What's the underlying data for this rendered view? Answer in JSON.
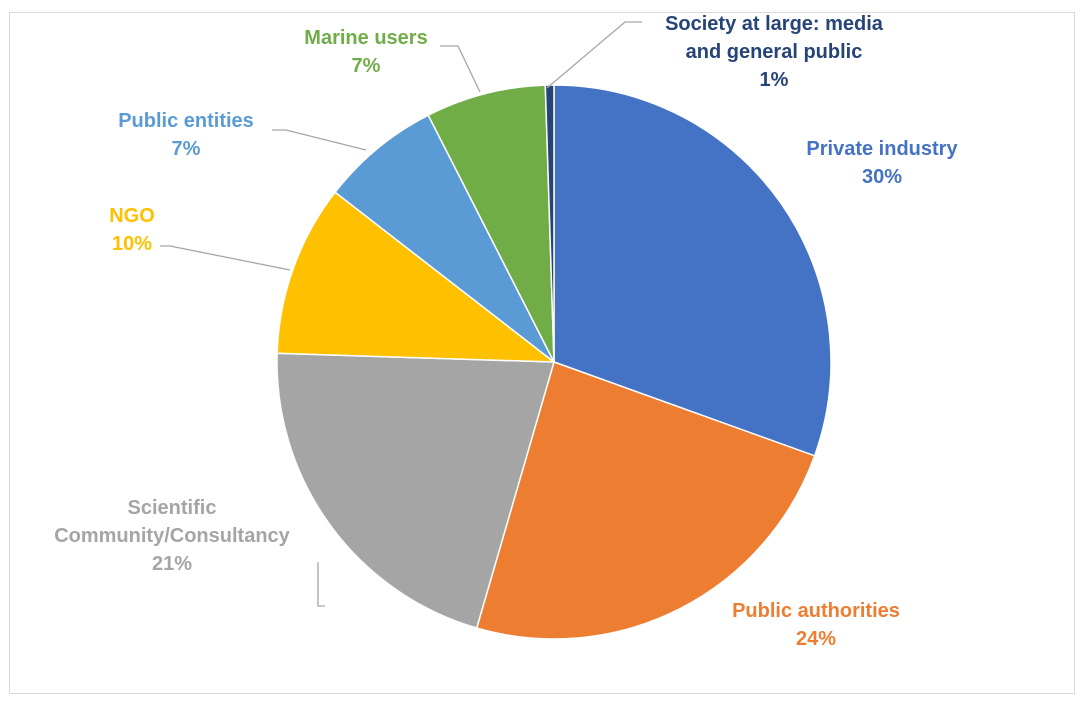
{
  "chart_data": {
    "type": "pie",
    "title": "",
    "slices": [
      {
        "label_lines": [
          "Private industry"
        ],
        "value_label": "30%",
        "value": 30.5,
        "color": "#4472C4"
      },
      {
        "label_lines": [
          "Public authorities"
        ],
        "value_label": "24%",
        "value": 24.0,
        "color": "#ED7D31"
      },
      {
        "label_lines": [
          "Scientific",
          "Community/Consultancy"
        ],
        "value_label": "21%",
        "value": 21.0,
        "color": "#A5A5A5"
      },
      {
        "label_lines": [
          "NGO"
        ],
        "value_label": "10%",
        "value": 10.0,
        "color": "#FFC000"
      },
      {
        "label_lines": [
          "Public entities"
        ],
        "value_label": "7%",
        "value": 7.0,
        "color": "#5B9BD5"
      },
      {
        "label_lines": [
          "Marine users"
        ],
        "value_label": "7%",
        "value": 7.0,
        "color": "#70AD47"
      },
      {
        "label_lines": [
          "Society at large: media",
          "and general public"
        ],
        "value_label": "1%",
        "value": 0.5,
        "color": "#264478"
      }
    ],
    "legend": "none",
    "start_angle_deg": 0,
    "direction": "clockwise"
  }
}
